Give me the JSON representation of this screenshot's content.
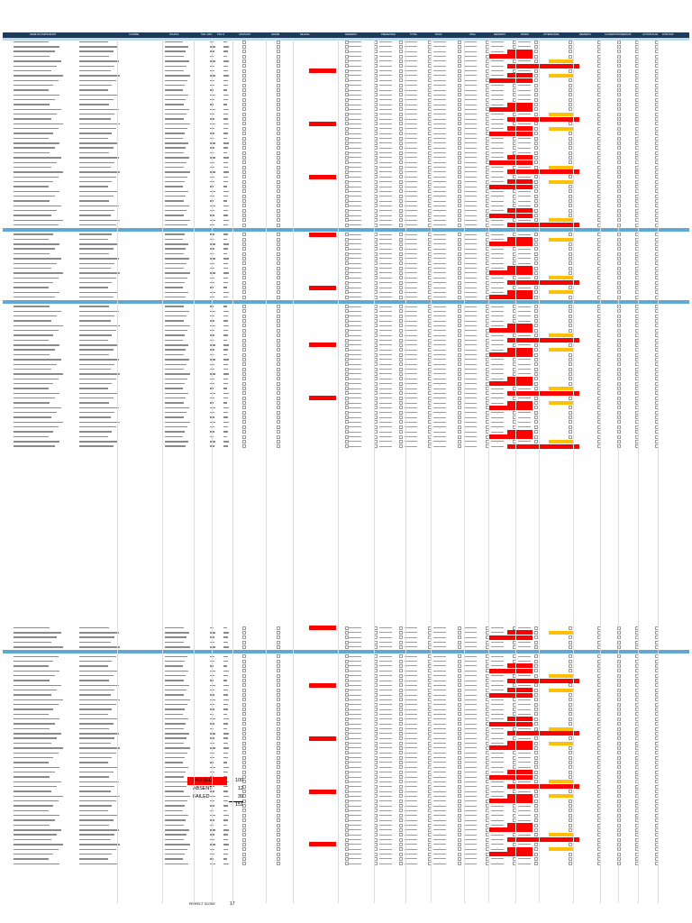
{
  "sheet": {
    "columns": [
      "NAME OF PARTICIPANT",
      "COURSE",
      "SCHOOL",
      "TES / ESC",
      "TES %",
      "ADVISORY",
      "GRADE",
      "RE-EVAL",
      "REMARKS",
      "PRESENTED",
      "TOTAL",
      "BOOK",
      "ORAL",
      "REMARKS",
      "PAPER",
      "ATTENDANCE",
      "REMARKS",
      "ACCREDITATION",
      "GROUP",
      "ACTION PLAN",
      "POSITION"
    ],
    "passed_text": "SATISFIED",
    "mark_text": "SATISFIED",
    "action_text": "ACTION ENDED"
  },
  "summary": {
    "passed_label": "PASSED",
    "passed_value": "100",
    "absent_label": "ABSENT",
    "absent_value": "12",
    "failed_label": "FAILED",
    "failed_value": "39",
    "total_value": "151"
  },
  "footer": {
    "label": "PERFECT SCORE",
    "value": "17"
  },
  "colors": {
    "header": "#1f3b5c",
    "section": "#5fa8d3",
    "fail": "#ff0000",
    "flag": "#ffc000"
  }
}
